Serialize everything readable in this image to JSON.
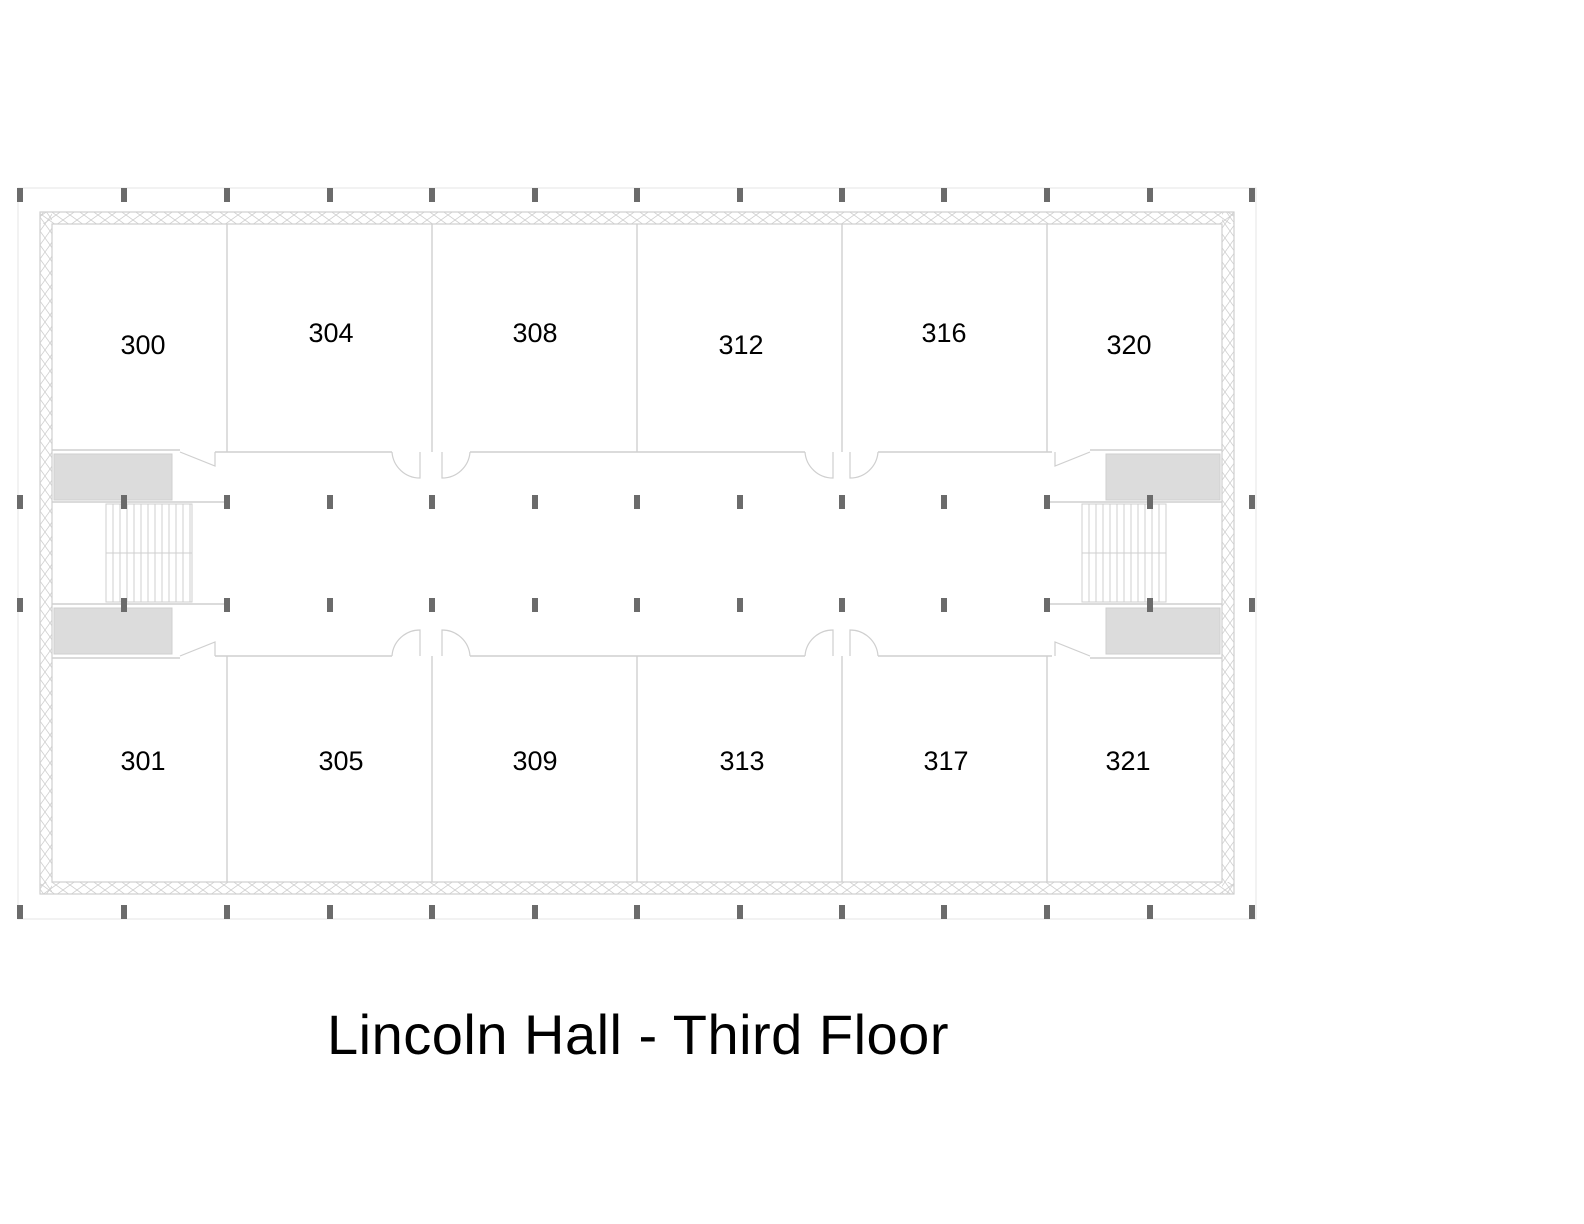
{
  "title": "Lincoln Hall - Third Floor",
  "rooms_top": [
    "300",
    "304",
    "308",
    "312",
    "316",
    "320"
  ],
  "rooms_bottom": [
    "301",
    "305",
    "309",
    "313",
    "317",
    "321"
  ],
  "colors": {
    "wall": "#cfcfcf",
    "column": "#6b6b6b",
    "stair_fill": "#dcdcdc",
    "label": "#000000"
  }
}
